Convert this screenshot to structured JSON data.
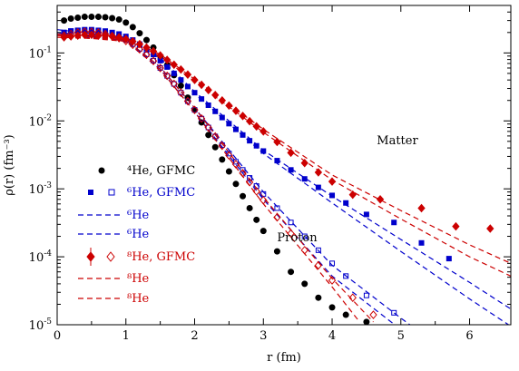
{
  "chart_data": {
    "type": "scatter",
    "xlabel": "r  (fm)",
    "ylabel": "ρ(r)  (fm⁻³)",
    "xlim": [
      0,
      6.6
    ],
    "ylim": [
      1e-05,
      0.5
    ],
    "yscale": "log",
    "x_ticks": [
      "0",
      "1",
      "2",
      "3",
      "4",
      "5",
      "6"
    ],
    "y_ticks": [
      {
        "base": "10",
        "exp": "-1",
        "value": 0.1
      },
      {
        "base": "10",
        "exp": "-2",
        "value": 0.01
      },
      {
        "base": "10",
        "exp": "-3",
        "value": 0.001
      },
      {
        "base": "10",
        "exp": "-4",
        "value": 0.0001
      },
      {
        "base": "10",
        "exp": "-5",
        "value": 1e-05
      }
    ],
    "annotations": [
      {
        "text": "Matter",
        "x": 4.65,
        "y": 0.0045
      },
      {
        "text": "Proton",
        "x": 3.2,
        "y": 0.00017
      }
    ],
    "legend": {
      "placement": "left-middle",
      "entries": [
        {
          "text": "⁴He, GFMC",
          "color": "#000000",
          "marker": "filled-circle"
        },
        {
          "text": "⁶He, GFMC",
          "color": "#0000cc",
          "marker": "square-pair"
        },
        {
          "text": "⁶He",
          "color": "#0000cc",
          "marker": "dashed-line"
        },
        {
          "text": "⁶He",
          "color": "#0000cc",
          "marker": "dashed-line"
        },
        {
          "text": "⁸He, GFMC",
          "color": "#cc0000",
          "marker": "diamond-pair"
        },
        {
          "text": "⁸He",
          "color": "#cc0000",
          "marker": "dashed-line"
        },
        {
          "text": "⁸He",
          "color": "#cc0000",
          "marker": "dashed-line"
        }
      ]
    },
    "series": [
      {
        "name": "⁴He, GFMC",
        "color": "#000000",
        "style": "filled",
        "x": [
          0.1,
          0.2,
          0.3,
          0.4,
          0.5,
          0.6,
          0.7,
          0.8,
          0.9,
          1.0,
          1.1,
          1.2,
          1.3,
          1.4,
          1.5,
          1.6,
          1.7,
          1.8,
          1.9,
          2.0,
          2.1,
          2.2,
          2.3,
          2.4,
          2.5,
          2.6,
          2.7,
          2.8,
          2.9,
          3.0,
          3.2,
          3.4,
          3.6,
          3.8,
          4.0,
          4.2,
          4.5
        ],
        "y": [
          0.3,
          0.32,
          0.33,
          0.34,
          0.34,
          0.34,
          0.335,
          0.325,
          0.31,
          0.28,
          0.24,
          0.195,
          0.155,
          0.12,
          0.09,
          0.066,
          0.047,
          0.033,
          0.022,
          0.0145,
          0.0095,
          0.0062,
          0.0041,
          0.0027,
          0.0018,
          0.00118,
          0.00078,
          0.00052,
          0.00035,
          0.00024,
          0.00012,
          6e-05,
          4e-05,
          2.5e-05,
          1.8e-05,
          1.4e-05,
          1.1e-05
        ]
      },
      {
        "name": "⁶He matter, GFMC",
        "color": "#0000cc",
        "style": "filled",
        "x": [
          0.1,
          0.2,
          0.3,
          0.4,
          0.5,
          0.6,
          0.7,
          0.8,
          0.9,
          1.0,
          1.1,
          1.2,
          1.3,
          1.4,
          1.5,
          1.6,
          1.7,
          1.8,
          1.9,
          2.0,
          2.1,
          2.2,
          2.3,
          2.4,
          2.5,
          2.6,
          2.7,
          2.8,
          2.9,
          3.0,
          3.2,
          3.4,
          3.6,
          3.8,
          4.0,
          4.2,
          4.5,
          4.9,
          5.3,
          5.7
        ],
        "y": [
          0.2,
          0.21,
          0.215,
          0.22,
          0.22,
          0.215,
          0.21,
          0.2,
          0.19,
          0.175,
          0.155,
          0.135,
          0.115,
          0.095,
          0.077,
          0.062,
          0.05,
          0.04,
          0.032,
          0.026,
          0.021,
          0.017,
          0.0138,
          0.0112,
          0.0091,
          0.0075,
          0.0062,
          0.0051,
          0.0043,
          0.0036,
          0.0026,
          0.0019,
          0.0014,
          0.00105,
          0.0008,
          0.00062,
          0.00042,
          0.00032,
          0.00016,
          9.4e-05
        ]
      },
      {
        "name": "⁶He proton, GFMC",
        "color": "#0000cc",
        "style": "open",
        "x": [
          0.1,
          0.2,
          0.3,
          0.4,
          0.5,
          0.6,
          0.7,
          0.8,
          0.9,
          1.0,
          1.1,
          1.2,
          1.3,
          1.4,
          1.5,
          1.6,
          1.7,
          1.8,
          1.9,
          2.0,
          2.1,
          2.2,
          2.3,
          2.4,
          2.5,
          2.6,
          2.7,
          2.8,
          2.9,
          3.0,
          3.2,
          3.4,
          3.6,
          3.8,
          4.0,
          4.2,
          4.5,
          4.9
        ],
        "y": [
          0.2,
          0.21,
          0.215,
          0.215,
          0.21,
          0.205,
          0.195,
          0.185,
          0.17,
          0.155,
          0.135,
          0.115,
          0.095,
          0.077,
          0.06,
          0.046,
          0.035,
          0.026,
          0.0195,
          0.0145,
          0.0108,
          0.008,
          0.0059,
          0.0044,
          0.0033,
          0.0025,
          0.0019,
          0.00145,
          0.0011,
          0.00084,
          0.00052,
          0.00032,
          0.0002,
          0.000125,
          8e-05,
          5.2e-05,
          2.7e-05,
          1.5e-05
        ]
      },
      {
        "name": "⁸He matter, GFMC",
        "color": "#cc0000",
        "style": "filled",
        "x": [
          0.1,
          0.2,
          0.3,
          0.4,
          0.5,
          0.6,
          0.7,
          0.8,
          0.9,
          1.0,
          1.1,
          1.2,
          1.3,
          1.4,
          1.5,
          1.6,
          1.7,
          1.8,
          1.9,
          2.0,
          2.1,
          2.2,
          2.3,
          2.4,
          2.5,
          2.6,
          2.7,
          2.8,
          2.9,
          3.0,
          3.2,
          3.4,
          3.6,
          3.8,
          4.0,
          4.3,
          4.7,
          5.3,
          5.8,
          6.3
        ],
        "y": [
          0.17,
          0.175,
          0.18,
          0.185,
          0.185,
          0.18,
          0.18,
          0.175,
          0.17,
          0.16,
          0.148,
          0.135,
          0.12,
          0.106,
          0.092,
          0.079,
          0.067,
          0.057,
          0.048,
          0.04,
          0.034,
          0.0285,
          0.024,
          0.02,
          0.0168,
          0.0141,
          0.0118,
          0.0099,
          0.0083,
          0.007,
          0.0049,
          0.0034,
          0.0024,
          0.00175,
          0.00128,
          0.00082,
          0.0007,
          0.00052,
          0.00028,
          0.00026
        ]
      },
      {
        "name": "⁸He proton, GFMC",
        "color": "#cc0000",
        "style": "open",
        "x": [
          0.1,
          0.2,
          0.3,
          0.4,
          0.5,
          0.6,
          0.7,
          0.8,
          0.9,
          1.0,
          1.1,
          1.2,
          1.3,
          1.4,
          1.5,
          1.6,
          1.7,
          1.8,
          1.9,
          2.0,
          2.1,
          2.2,
          2.3,
          2.4,
          2.5,
          2.6,
          2.7,
          2.8,
          2.9,
          3.0,
          3.2,
          3.4,
          3.6,
          3.8,
          4.0,
          4.3,
          4.6
        ],
        "y": [
          0.18,
          0.19,
          0.2,
          0.205,
          0.205,
          0.2,
          0.19,
          0.178,
          0.165,
          0.15,
          0.132,
          0.113,
          0.094,
          0.076,
          0.06,
          0.046,
          0.035,
          0.026,
          0.0195,
          0.0145,
          0.0108,
          0.008,
          0.0059,
          0.0043,
          0.0031,
          0.0023,
          0.0017,
          0.00125,
          0.00092,
          0.00068,
          0.00038,
          0.00022,
          0.000125,
          7.5e-05,
          4.5e-05,
          2.5e-05,
          1.4e-05
        ]
      }
    ],
    "fit_curves": [
      {
        "name": "⁶He matter fit A",
        "color": "#0000cc",
        "x": [
          0.0,
          1.0,
          1.5,
          2.0,
          3.0,
          4.0,
          5.0,
          6.0,
          6.6
        ],
        "y": [
          0.22,
          0.17,
          0.085,
          0.027,
          0.0037,
          0.00078,
          0.00018,
          4.2e-05,
          1.7e-05
        ]
      },
      {
        "name": "⁶He matter fit B",
        "color": "#0000cc",
        "x": [
          0.0,
          1.0,
          1.5,
          2.0,
          3.0,
          4.0,
          5.0,
          6.0,
          6.6
        ],
        "y": [
          0.2,
          0.165,
          0.082,
          0.025,
          0.0033,
          0.00062,
          0.00012,
          2.4e-05,
          9.5e-06
        ]
      },
      {
        "name": "⁶He proton fit A",
        "color": "#0000cc",
        "x": [
          0.0,
          1.0,
          1.5,
          2.0,
          3.0,
          4.0,
          5.0,
          5.6
        ],
        "y": [
          0.2,
          0.155,
          0.062,
          0.0155,
          0.0009,
          7.5e-05,
          1.25e-05,
          4.5e-06
        ]
      },
      {
        "name": "⁶He proton fit B",
        "color": "#0000cc",
        "x": [
          0.0,
          1.0,
          1.5,
          2.0,
          3.0,
          4.0,
          5.0,
          5.4
        ],
        "y": [
          0.19,
          0.15,
          0.058,
          0.0135,
          0.0007,
          5.2e-05,
          8.5e-06,
          5.5e-06
        ]
      },
      {
        "name": "⁸He matter fit A",
        "color": "#cc0000",
        "x": [
          0.0,
          1.0,
          1.5,
          2.0,
          3.0,
          4.0,
          5.0,
          6.0,
          6.6
        ],
        "y": [
          0.18,
          0.165,
          0.095,
          0.041,
          0.0075,
          0.0016,
          0.00048,
          0.00015,
          8e-05
        ]
      },
      {
        "name": "⁸He matter fit B",
        "color": "#cc0000",
        "x": [
          0.0,
          1.0,
          1.5,
          2.0,
          3.0,
          4.0,
          5.0,
          6.0,
          6.6
        ],
        "y": [
          0.17,
          0.158,
          0.09,
          0.038,
          0.0068,
          0.00135,
          0.00036,
          0.0001,
          5.2e-05
        ]
      },
      {
        "name": "⁸He proton fit A",
        "color": "#cc0000",
        "x": [
          0.0,
          1.0,
          1.5,
          2.0,
          3.0,
          4.0,
          4.6
        ],
        "y": [
          0.19,
          0.155,
          0.062,
          0.0155,
          0.00075,
          4.8e-05,
          1.1e-05
        ]
      },
      {
        "name": "⁸He proton fit B",
        "color": "#cc0000",
        "x": [
          0.0,
          1.0,
          1.5,
          2.0,
          3.0,
          4.0,
          4.4
        ],
        "y": [
          0.18,
          0.148,
          0.057,
          0.0135,
          0.0006,
          3.6e-05,
          1.1e-05
        ]
      }
    ]
  }
}
